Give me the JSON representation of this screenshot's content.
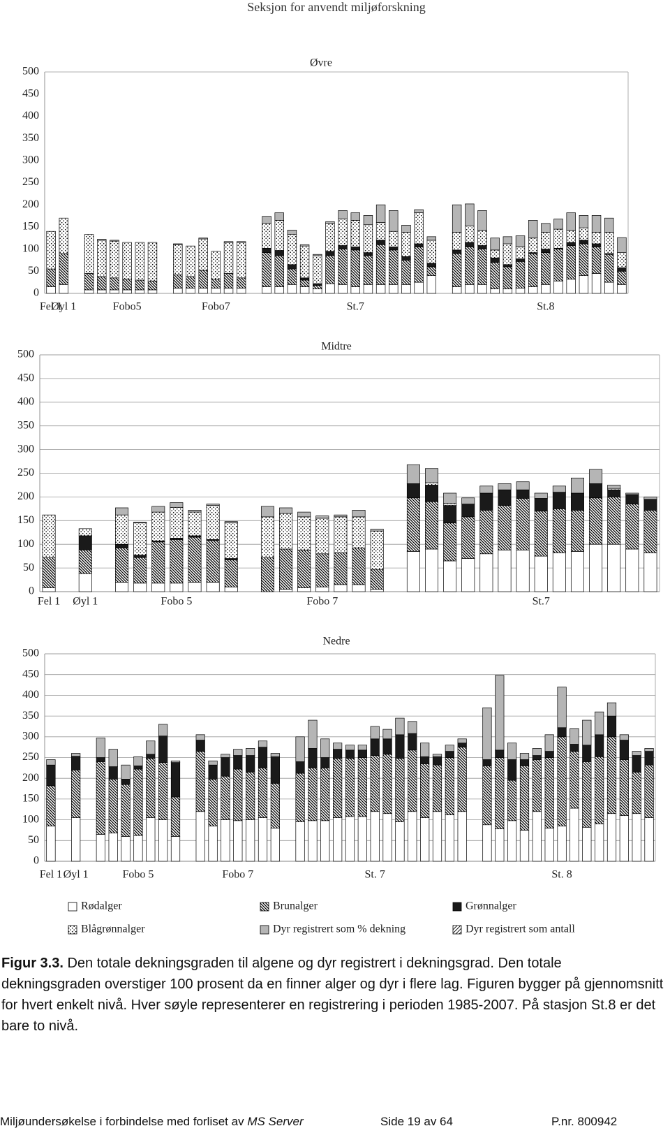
{
  "header": {
    "title": "Seksjon for anvendt miljøforskning"
  },
  "legend": [
    {
      "name": "Rødalger",
      "color": "#ffffff"
    },
    {
      "name": "Brunalger",
      "color": "#ffffff"
    },
    {
      "name": "Grønnalger",
      "color": "#1a1a1a"
    },
    {
      "name": "Blågrønnalger",
      "color": "#ffffff"
    },
    {
      "name": "Dyr registrert som % dekning",
      "color": "#b5b5b5"
    },
    {
      "name": "Dyr registrert som antall",
      "color": "#ffffff"
    }
  ],
  "chart_data": [
    {
      "type": "bar",
      "stacked": true,
      "title": "Øvre",
      "grid": false,
      "ylim": [
        0,
        500
      ],
      "yticks": [
        0,
        50,
        100,
        150,
        200,
        250,
        300,
        350,
        400,
        450,
        500
      ],
      "categories": [
        "Fel 1",
        "Øyl 1",
        null,
        null,
        null,
        null,
        "Fobo5",
        null,
        null,
        null,
        null,
        null,
        null,
        "Fobo7",
        null,
        null,
        null,
        null,
        null,
        null,
        null,
        null,
        null,
        null,
        "St.7",
        null,
        null,
        null,
        null,
        null,
        null,
        null,
        null,
        null,
        null,
        null,
        null,
        null,
        null,
        "St.8",
        null,
        null,
        null,
        null,
        null,
        null
      ],
      "series": [
        {
          "name": "Rødalger",
          "values": [
            15,
            20,
            null,
            8,
            8,
            8,
            8,
            8,
            8,
            null,
            12,
            12,
            12,
            12,
            12,
            12,
            null,
            15,
            15,
            20,
            15,
            10,
            22,
            20,
            15,
            20,
            20,
            20,
            20,
            25,
            40,
            null,
            15,
            20,
            20,
            10,
            10,
            12,
            15,
            20,
            28,
            32,
            40,
            45,
            25,
            20
          ]
        },
        {
          "name": "Brunalger",
          "values": [
            40,
            70,
            null,
            37,
            30,
            27,
            24,
            22,
            20,
            null,
            30,
            26,
            40,
            20,
            33,
            23,
            null,
            77,
            70,
            35,
            15,
            8,
            63,
            80,
            83,
            65,
            90,
            78,
            55,
            80,
            20,
            null,
            75,
            85,
            80,
            60,
            50,
            60,
            75,
            72,
            72,
            76,
            72,
            60,
            63,
            30
          ]
        },
        {
          "name": "Grønnalger",
          "values": [
            0,
            0,
            null,
            0,
            0,
            0,
            0,
            0,
            0,
            null,
            0,
            0,
            0,
            0,
            0,
            0,
            null,
            10,
            12,
            10,
            5,
            4,
            10,
            8,
            7,
            7,
            10,
            7,
            8,
            7,
            8,
            null,
            8,
            10,
            8,
            10,
            5,
            6,
            2,
            8,
            2,
            7,
            8,
            7,
            2,
            8
          ]
        },
        {
          "name": "Blågrønnalger",
          "values": [
            85,
            80,
            null,
            88,
            82,
            83,
            83,
            85,
            87,
            null,
            68,
            69,
            71,
            63,
            70,
            80,
            null,
            56,
            68,
            68,
            72,
            63,
            63,
            60,
            60,
            63,
            40,
            35,
            55,
            70,
            52,
            null,
            40,
            37,
            34,
            18,
            47,
            27,
            33,
            38,
            43,
            27,
            28,
            26,
            48,
            34
          ]
        },
        {
          "name": "Dyr registrert som % dekning",
          "values": [
            0,
            0,
            null,
            0,
            2,
            2,
            0,
            0,
            0,
            null,
            2,
            0,
            2,
            0,
            2,
            2,
            null,
            16,
            17,
            10,
            3,
            3,
            4,
            19,
            17,
            21,
            40,
            47,
            16,
            7,
            8,
            null,
            62,
            50,
            45,
            27,
            16,
            25,
            40,
            20,
            23,
            40,
            28,
            38,
            32,
            34
          ]
        }
      ]
    },
    {
      "type": "bar",
      "stacked": true,
      "title": "Midtre",
      "grid": true,
      "ylim": [
        0,
        500
      ],
      "yticks": [
        0,
        50,
        100,
        150,
        200,
        250,
        300,
        350,
        400,
        450,
        500
      ],
      "categories": [
        "Fel 1",
        null,
        "Øyl 1",
        null,
        null,
        null,
        null,
        "Fobo 5",
        null,
        null,
        null,
        null,
        null,
        null,
        null,
        "Fobo 7",
        null,
        null,
        null,
        null,
        null,
        null,
        null,
        null,
        null,
        null,
        null,
        "St.7",
        null,
        null,
        null,
        null,
        null,
        null
      ],
      "series": [
        {
          "name": "Rødalger",
          "values": [
            8,
            null,
            38,
            null,
            20,
            18,
            18,
            18,
            20,
            20,
            10,
            null,
            0,
            5,
            8,
            10,
            15,
            15,
            5,
            null,
            85,
            90,
            65,
            70,
            80,
            88,
            88,
            75,
            82,
            85,
            100,
            100,
            90,
            82
          ]
        },
        {
          "name": "Brunalger",
          "values": [
            64,
            null,
            50,
            null,
            72,
            54,
            87,
            92,
            95,
            88,
            57,
            null,
            72,
            85,
            80,
            70,
            67,
            77,
            42,
            null,
            113,
            100,
            80,
            88,
            92,
            94,
            109,
            95,
            93,
            87,
            98,
            100,
            95,
            90
          ]
        },
        {
          "name": "Grønnalger",
          "values": [
            0,
            null,
            30,
            null,
            8,
            5,
            2,
            3,
            3,
            2,
            3,
            null,
            0,
            0,
            0,
            0,
            0,
            0,
            0,
            null,
            30,
            35,
            37,
            27,
            36,
            33,
            18,
            27,
            35,
            36,
            30,
            15,
            20,
            23
          ]
        },
        {
          "name": "Blågrønnalger",
          "values": [
            90,
            null,
            15,
            null,
            62,
            68,
            61,
            65,
            50,
            72,
            75,
            null,
            86,
            75,
            70,
            75,
            76,
            66,
            81,
            null,
            0,
            5,
            4,
            0,
            0,
            0,
            0,
            0,
            0,
            0,
            0,
            3,
            0,
            0
          ]
        },
        {
          "name": "Dyr registrert som % dekning",
          "values": [
            0,
            null,
            0,
            null,
            15,
            2,
            12,
            10,
            4,
            3,
            3,
            null,
            22,
            12,
            10,
            5,
            4,
            14,
            4,
            null,
            40,
            30,
            22,
            13,
            15,
            13,
            17,
            11,
            13,
            32,
            30,
            7,
            3,
            5
          ]
        }
      ]
    },
    {
      "type": "bar",
      "stacked": true,
      "title": "Nedre",
      "grid": true,
      "ylim": [
        0,
        500
      ],
      "yticks": [
        0,
        50,
        100,
        150,
        200,
        250,
        300,
        350,
        400,
        450,
        500
      ],
      "categories": [
        "Fel 1",
        null,
        "Øyl 1",
        null,
        null,
        null,
        null,
        "Fobo 5",
        null,
        null,
        null,
        null,
        null,
        null,
        null,
        "Fobo 7",
        null,
        null,
        null,
        null,
        null,
        null,
        null,
        null,
        null,
        null,
        "St. 7",
        null,
        null,
        null,
        null,
        null,
        null,
        null,
        null,
        null,
        null,
        null,
        null,
        null,
        null,
        "St. 8",
        null,
        null,
        null,
        null,
        null,
        null,
        null
      ],
      "series": [
        {
          "name": "Rødalger",
          "values": [
            85,
            null,
            105,
            null,
            65,
            68,
            60,
            62,
            105,
            100,
            60,
            null,
            120,
            85,
            100,
            98,
            100,
            105,
            80,
            null,
            95,
            98,
            98,
            105,
            108,
            108,
            120,
            115,
            95,
            120,
            105,
            120,
            112,
            120,
            null,
            88,
            78,
            98,
            75,
            120,
            80,
            85,
            128,
            82,
            90,
            115,
            110,
            115,
            105
          ]
        },
        {
          "name": "Brunalger",
          "values": [
            97,
            null,
            115,
            null,
            175,
            130,
            125,
            160,
            143,
            138,
            95,
            null,
            145,
            113,
            105,
            124,
            115,
            120,
            108,
            null,
            117,
            127,
            127,
            143,
            140,
            142,
            135,
            143,
            153,
            148,
            130,
            112,
            138,
            155,
            null,
            142,
            172,
            97,
            155,
            125,
            170,
            215,
            137,
            158,
            162,
            185,
            135,
            100,
            127
          ]
        },
        {
          "name": "Grønnalger",
          "values": [
            50,
            null,
            33,
            null,
            10,
            30,
            13,
            8,
            10,
            64,
            83,
            null,
            27,
            34,
            45,
            33,
            40,
            50,
            64,
            null,
            28,
            47,
            25,
            22,
            20,
            18,
            40,
            37,
            57,
            40,
            17,
            20,
            15,
            10,
            null,
            15,
            18,
            50,
            15,
            10,
            15,
            22,
            17,
            40,
            53,
            50,
            47,
            40,
            33
          ]
        },
        {
          "name": "Dyr registrert som % dekning",
          "values": [
            13,
            null,
            7,
            null,
            47,
            42,
            34,
            22,
            32,
            28,
            4,
            null,
            13,
            10,
            8,
            15,
            17,
            15,
            8,
            null,
            60,
            68,
            45,
            15,
            12,
            12,
            30,
            23,
            40,
            29,
            33,
            6,
            15,
            10,
            null,
            125,
            180,
            40,
            15,
            17,
            40,
            98,
            38,
            60,
            55,
            32,
            13,
            10,
            7
          ]
        }
      ]
    }
  ],
  "caption": {
    "label": "Figur 3.3.",
    "text": "Den totale dekningsgraden til algene og dyr registrert i dekningsgrad. Den totale dekningsgraden overstiger 100 prosent da en finner alger og dyr i flere lag. Figuren bygger på gjennomsnitt for hvert enkelt nivå. Hver søyle representerer en registrering i perioden 1985-2007. På stasjon St.8 er det bare to nivå."
  },
  "footer": {
    "left": "Miljøundersøkelse i forbindelse med forliset av",
    "vessel": "MS Server",
    "page": "Side 19 av 64",
    "project": "P.nr. 800942"
  }
}
